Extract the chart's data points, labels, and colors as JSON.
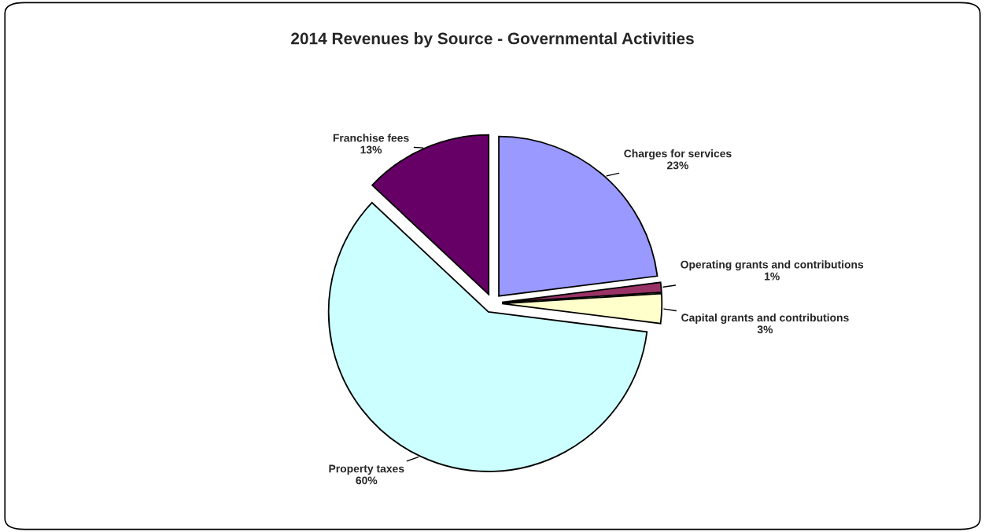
{
  "chart_data": {
    "type": "pie",
    "title": "2014 Revenues by Source - Governmental Activities",
    "categories": [
      "Charges for services",
      "Operating grants and contributions",
      "Capital grants and contributions",
      "Property taxes",
      "Franchise fees"
    ],
    "values": [
      23,
      1,
      3,
      60,
      13
    ],
    "value_labels": [
      "23%",
      "1%",
      "3%",
      "60%",
      "13%"
    ],
    "colors": [
      "#9999ff",
      "#993366",
      "#ffffcc",
      "#ccffff",
      "#660066"
    ],
    "legend": false
  }
}
